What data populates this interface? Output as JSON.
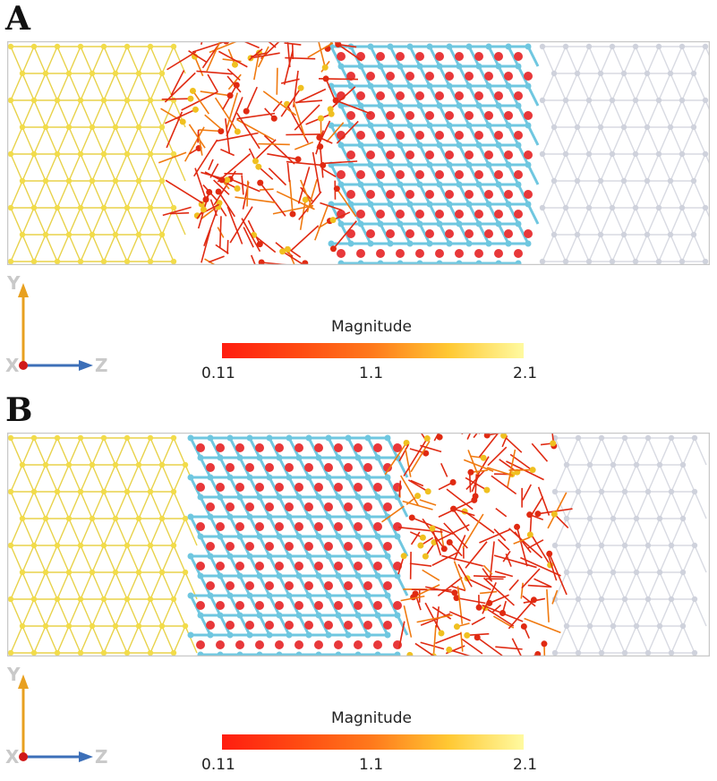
{
  "panels": [
    {
      "letter": "A",
      "colorbar": {
        "title": "Magnitude",
        "min_label": "0.11",
        "mid_label": "1.1",
        "max_label": "2.1"
      },
      "axes": {
        "y_label": "Y",
        "z_label": "Z",
        "x_label": "X"
      }
    },
    {
      "letter": "B",
      "colorbar": {
        "title": "Magnitude",
        "min_label": "0.11",
        "mid_label": "1.1",
        "max_label": "2.1"
      },
      "axes": {
        "y_label": "Y",
        "z_label": "Z",
        "x_label": "X"
      }
    }
  ],
  "colors": {
    "yellow_region": "#f2dc4a",
    "cyan_atoms": "#6fc7e0",
    "red_atoms": "#e8383a",
    "white_region": "#cfd2dc",
    "vector_red": "#e02a12",
    "vector_orange": "#f07a10",
    "axis_y": "#e8a020",
    "axis_z": "#3c6fb8"
  }
}
